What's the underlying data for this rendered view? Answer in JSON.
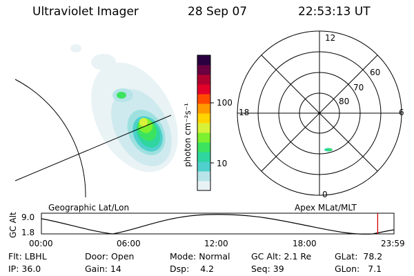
{
  "header": {
    "title": "Ultraviolet Imager",
    "date": "28 Sep 07",
    "time": "22:53:13 UT"
  },
  "colorbar": {
    "unit_label": "photon cm⁻²s⁻¹",
    "ticks": [
      "100",
      "10"
    ],
    "colors": [
      "#e8f2f4",
      "#b7e4e8",
      "#4fd0cc",
      "#2fd6a0",
      "#3ce35f",
      "#7df02f",
      "#d8f23a",
      "#ffd400",
      "#ff9a00",
      "#ff4a00",
      "#e3002a",
      "#b0002f",
      "#6a0040",
      "#2a0040"
    ]
  },
  "polar": {
    "mlt_labels": [
      "12",
      "18",
      "6",
      "0"
    ],
    "lat_labels": [
      "60",
      "70",
      "80"
    ]
  },
  "timeline": {
    "left_label": "Geographic Lat/Lon",
    "right_label": "Apex MLat/MLT",
    "axis_label": "GC Alt",
    "y_ticks": [
      "9.0",
      "1.8"
    ],
    "x_ticks": [
      "00:00",
      "06:00",
      "12:00",
      "18:00",
      "23:59"
    ],
    "marker_time_hours": 22.89,
    "marker_color": "#d00000"
  },
  "info": [
    {
      "label": "Flt:",
      "value": "LBHL"
    },
    {
      "label": "Door:",
      "value": "Open"
    },
    {
      "label": "Mode:",
      "value": "Normal"
    },
    {
      "label": "GC Alt:",
      "value": "2.1 Re"
    },
    {
      "label": "GLat:",
      "value": "78.2"
    },
    {
      "label": "IP:",
      "value": "36.0"
    },
    {
      "label": "Gain:",
      "value": "14"
    },
    {
      "label": "Dsp:",
      "value": "4.2"
    },
    {
      "label": "Seq:",
      "value": "39"
    },
    {
      "label": "GLon:",
      "value": "7.1"
    }
  ]
}
